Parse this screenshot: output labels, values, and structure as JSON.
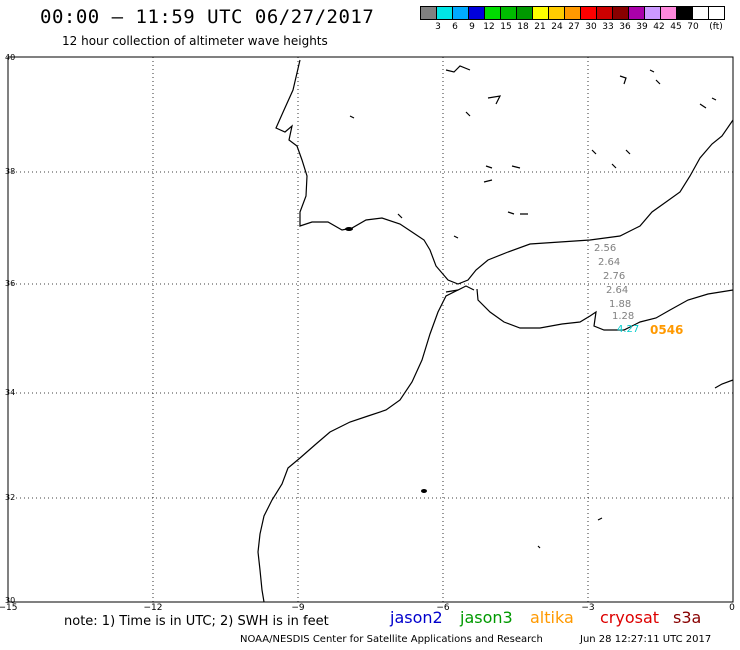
{
  "header": {
    "title": "00:00 — 11:59 UTC 06/27/2017",
    "subtitle": "12 hour collection of altimeter wave heights"
  },
  "color_scale": {
    "colors": [
      "#808080",
      "#00e6e6",
      "#00aaff",
      "#0000dd",
      "#00dd00",
      "#00bb00",
      "#009900",
      "#ffff00",
      "#ffcc00",
      "#ff9900",
      "#ff0000",
      "#cc0000",
      "#880000",
      "#aa00aa",
      "#cc99ff",
      "#ff88dd",
      "#000000"
    ],
    "labels": [
      "3",
      "6",
      "9",
      "12",
      "15",
      "18",
      "21",
      "24",
      "27",
      "30",
      "33",
      "36",
      "39",
      "42",
      "45",
      "70",
      "(ft)"
    ]
  },
  "axes": {
    "lat_labels": [
      "40",
      "38",
      "36",
      "34",
      "32",
      "30"
    ],
    "lon_labels": [
      "−15",
      "−12",
      "−9",
      "−6",
      "−3",
      "0"
    ]
  },
  "track": {
    "pass_id": "0546",
    "values": [
      "2.56",
      "2.64",
      "2.76",
      "2.64",
      "1.88",
      "1.28",
      "4.27"
    ]
  },
  "footer": {
    "note": "note: 1) Time is in UTC; 2) SWH is in feet",
    "satellites": [
      {
        "name": "jason2",
        "color": "#0000cc"
      },
      {
        "name": "jason3",
        "color": "#009900"
      },
      {
        "name": "altika",
        "color": "#ff9900"
      },
      {
        "name": "cryosat",
        "color": "#dd0000"
      },
      {
        "name": "s3a",
        "color": "#880000"
      }
    ],
    "credit": "NOAA/NESDIS Center for Satellite Applications and Research",
    "timestamp": "Jun 28 12:27:11 UTC 2017"
  }
}
